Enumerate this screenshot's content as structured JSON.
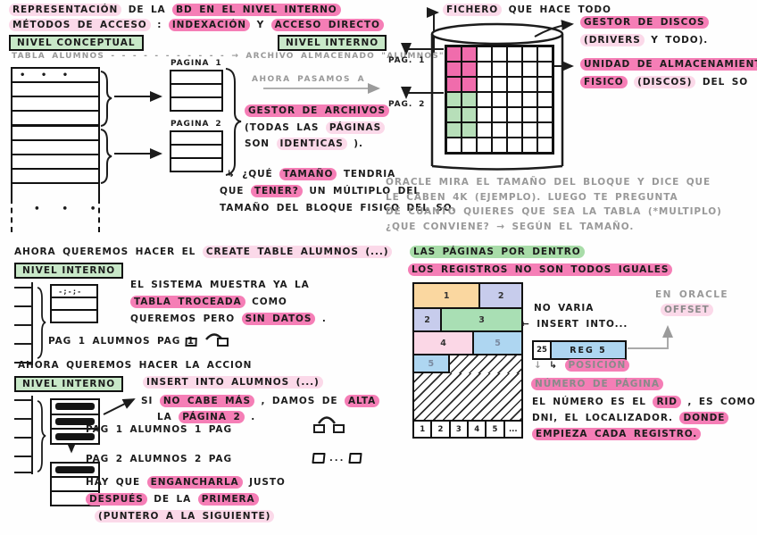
{
  "colors": {
    "highlight_pink": "#F57EB6",
    "highlight_pink_light": "#FBD9E9",
    "highlight_green": "#A8DCA8",
    "box_green": "#C8E8C8",
    "disk_cell_pink": "#F06CAC",
    "disk_cell_green": "#B7DFB9",
    "record_orange": "#FAD7A0",
    "record_lavender": "#C7CCEC",
    "record_green": "#A9DFB4",
    "record_rose": "#FBD7E6",
    "record_blue": "#AED6F1",
    "ink": "#1C1C1C",
    "pencil_gray": "#999999"
  },
  "header": {
    "l1a": "REPRESENTACIÓN",
    "l1b": "DE LA",
    "l1c": "BD EN EL NIVEL INTERNO",
    "l2a": "MÉTODOS DE ACCESO",
    "l2sep": ":",
    "l2b": "INDEXACIÓN",
    "l2y": "Y",
    "l2c": "ACCESO DIRECTO",
    "box_conceptual": "NIVEL CONCEPTUAL",
    "box_interno": "NIVEL INTERNO",
    "map_left": "TABLA ALUMNOS",
    "map_arrow": "- - - - - - - - - - - →",
    "map_right": "ARCHIVO ALMACENADO \"ALUMNOS\""
  },
  "split_diagram": {
    "dots": "• • •",
    "bottom_dots": "• • •",
    "pagina1": "PAGINA 1",
    "pagina2": "PAGINA 2",
    "ahora_pasamos": "AHORA PASAMOS A",
    "gestor_archivos": "GESTOR DE ARCHIVOS",
    "todas_a": "(TODAS LAS",
    "todas_b": "PÁGINAS",
    "son_a": "SON",
    "son_b": "IDENTICAS",
    "son_c": ").",
    "q1a": "↳ ¿QUÉ",
    "q1b": "TAMAÑO",
    "q1c": "TENDRIA",
    "q2a": "QUE",
    "q2b": "TENER?",
    "q2c": "UN MÚLTIPLO DEL",
    "q3": "TAMAÑO DEL BLOQUE FISICO DEL SO."
  },
  "disk": {
    "fichero_hl": "FICHERO",
    "fichero_rest": "QUE HACE TODO",
    "pag1": "PAG. 1",
    "pag2": "PAG. 2",
    "gestor_discos": "GESTOR DE DISCOS",
    "drivers_hl": "(DRIVERS",
    "drivers_rest": "Y TODO).",
    "unidad1": "UNIDAD DE ALMACENAMIENTO",
    "unidad2a": "FISICO",
    "unidad2b": "(DISCOS)",
    "unidad2c": "DEL SO",
    "grid": {
      "rows": 7,
      "cols": 7,
      "pink_region": {
        "r0": 0,
        "r1": 2,
        "c0": 0,
        "c1": 1
      },
      "green_region": {
        "r0": 3,
        "r1": 5,
        "c0": 0,
        "c1": 1
      }
    }
  },
  "oracle_note": {
    "l1": "ORACLE MIRA EL TAMAÑO DEL BLOQUE Y DICE QUE",
    "l2": "LE CABEN 4K (EJEMPLO). LUEGO TE PREGUNTA",
    "l3": "DE CUANTO QUIERES QUE SEA LA TABLA (*MULTIPLO)",
    "l4": "¿QUE CONVIENE? → SEGÚN EL TAMAÑO."
  },
  "create_section": {
    "t1": "AHORA QUEREMOS HACER EL",
    "t2": "CREATE TABLE ALUMNOS (...)",
    "nivel": "NIVEL INTERNO",
    "mini_header": "-;-;-",
    "b1": "EL SISTEMA MUESTRA YA LA",
    "b2a": "TABLA TROCEADA",
    "b2b": "COMO",
    "b3a": "QUEREMOS PERO",
    "b3b": "SIN DATOS",
    "b3c": ".",
    "pag_line": "PAG 1 ALUMNOS PAG 1"
  },
  "insert_section": {
    "t1": "AHORA QUEREMOS HACER LA ACCION",
    "nivel": "NIVEL INTERNO",
    "t2": "INSERT INTO ALUMNOS (...)",
    "n1a": "SI",
    "n1b": "NO CABE MÁS",
    "n1c": ", DAMOS DE",
    "n1d": "ALTA",
    "n2a": "LA",
    "n2b": "PÁGINA 2",
    "n2c": ".",
    "pag1_line": "PAG 1 ALUMNOS 1 PAG",
    "pag2_line": "PAG 2 ALUMNOS 2 PAG",
    "between_dots": "...",
    "h1a": "HAY QUE",
    "h1b": "ENGANCHARLA",
    "h1c": "JUSTO",
    "h2a": "DESPUÉS",
    "h2b": "DE LA",
    "h2c": "PRIMERA",
    "h3": "(PUNTERO A LA SIGUIENTE)"
  },
  "page_internals": {
    "title_green": "LAS PÁGINAS POR DENTRO",
    "title_pink": "LOS REGISTROS NO SON TODOS IGUALES",
    "rec_r1c1": "1",
    "rec_r1c2": "2",
    "rec_r2c1": "2",
    "rec_r2c2": "3",
    "rec_r3c1": "4",
    "rec_r3c2": "5",
    "rec_r4c1": "5",
    "slots": [
      "1",
      "2",
      "3",
      "4",
      "5",
      "..."
    ],
    "no_varia": "NO VARIA",
    "insert_into": "← INSERT INTO...",
    "en_oracle": "EN ORACLE",
    "offset": "OFFSET",
    "reg_offset": "25",
    "reg_label": "REG 5",
    "down_arrow": "↓",
    "elbow": "↳",
    "posicion": "POSICIÓN",
    "numero_pagina": "NÚMERO DE PÁGINA",
    "rid1a": "EL NÚMERO ES EL",
    "rid1b": "RID",
    "rid1c": ", ES COMO EL",
    "rid2a": "DNI, EL LOCALIZADOR.",
    "rid2b": "DONDE",
    "rid3": "EMPIEZA CADA REGISTRO."
  }
}
